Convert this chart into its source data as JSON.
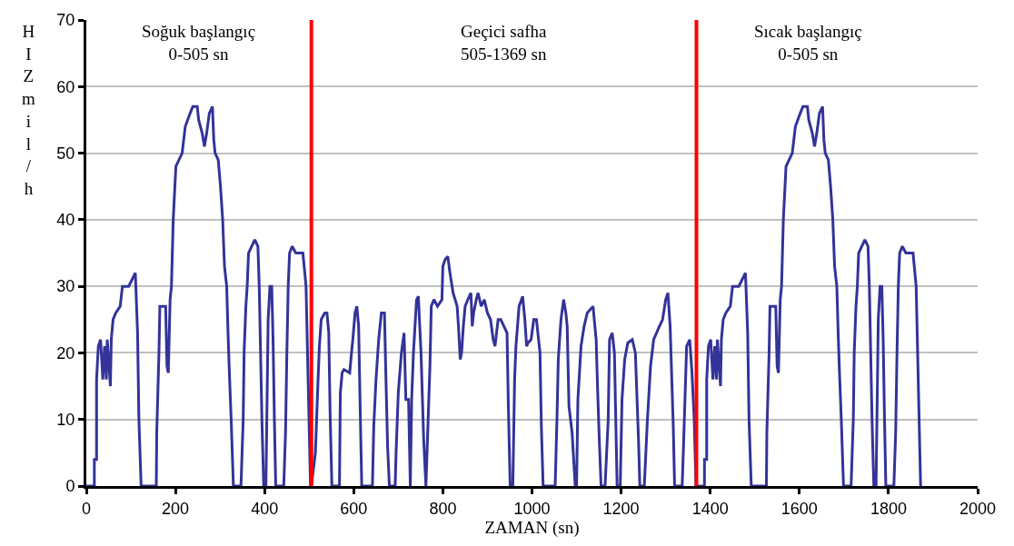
{
  "chart_data": {
    "type": "line",
    "xlabel": "ZAMAN (sn)",
    "ylabel": "HIZ mil/h",
    "xlim": [
      0,
      2000
    ],
    "xticks": [
      0,
      200,
      400,
      600,
      800,
      1000,
      1200,
      1400,
      1600,
      1800,
      2000
    ],
    "ylim": [
      0,
      70
    ],
    "yticks": [
      0,
      10,
      20,
      30,
      40,
      50,
      60,
      70
    ],
    "grid": "y",
    "marker": "none",
    "line_style": "solid",
    "ref_lines": [
      {
        "axis": "x",
        "value": 505,
        "color": "#ff0000"
      },
      {
        "axis": "x",
        "value": 1369,
        "color": "#ff0000"
      }
    ],
    "annotations": [
      "Soğuk başlangıç\n0-505 sn",
      "Geçici safha\n505-1369 sn",
      "Sıcak başlangıç\n0-505 sn"
    ],
    "series": [
      {
        "color": "#333399",
        "x": [
          0,
          18,
          18,
          23,
          23,
          27,
          32,
          37,
          41,
          45,
          47,
          54,
          56,
          60,
          66,
          76,
          81,
          95,
          110,
          115,
          118,
          123,
          157,
          158,
          163,
          165,
          178,
          181,
          184,
          188,
          191,
          195,
          201,
          215,
          222,
          233,
          239,
          249,
          252,
          260,
          265,
          270,
          276,
          283,
          286,
          289,
          296,
          301,
          306,
          310,
          315,
          318,
          321,
          325,
          330,
          347,
          352,
          354,
          358,
          361,
          364,
          371,
          378,
          385,
          388,
          391,
          394,
          398,
          403,
          405,
          408,
          412,
          416,
          419,
          422,
          425,
          443,
          447,
          450,
          453,
          456,
          462,
          470,
          486,
          493,
          496,
          499,
          503,
          505,
          514,
          520,
          523,
          527,
          535,
          540,
          544,
          547,
          551,
          568,
          570,
          574,
          578,
          591,
          595,
          598,
          603,
          607,
          611,
          615,
          618,
          642,
          645,
          650,
          656,
          662,
          669,
          672,
          676,
          680,
          693,
          695,
          700,
          707,
          713,
          717,
          723,
          727,
          730,
          734,
          741,
          745,
          751,
          757,
          762,
          766,
          771,
          774,
          780,
          788,
          798,
          800,
          805,
          811,
          816,
          823,
          832,
          835,
          839,
          842,
          846,
          850,
          856,
          863,
          866,
          869,
          875,
          879,
          886,
          893,
          900,
          907,
          913,
          917,
          924,
          930,
          937,
          944,
          947,
          951,
          957,
          961,
          964,
          971,
          979,
          984,
          988,
          991,
          998,
          1004,
          1010,
          1018,
          1021,
          1025,
          1052,
          1056,
          1059,
          1065,
          1071,
          1076,
          1079,
          1083,
          1090,
          1097,
          1100,
          1103,
          1110,
          1117,
          1124,
          1137,
          1144,
          1147,
          1151,
          1155,
          1164,
          1171,
          1174,
          1180,
          1185,
          1188,
          1191,
          1198,
          1202,
          1208,
          1215,
          1225,
          1232,
          1239,
          1242,
          1252,
          1259,
          1266,
          1273,
          1286,
          1293,
          1300,
          1305,
          1310,
          1317,
          1320,
          1337,
          1340,
          1347,
          1354,
          1359,
          1364,
          1368,
          1369,
          1387,
          1387,
          1392,
          1392,
          1396,
          1401,
          1406,
          1410,
          1414,
          1416,
          1423,
          1425,
          1429,
          1435,
          1445,
          1450,
          1464,
          1479,
          1484,
          1487,
          1492,
          1526,
          1527,
          1532,
          1534,
          1547,
          1550,
          1553,
          1557,
          1560,
          1564,
          1570,
          1584,
          1591,
          1602,
          1608,
          1618,
          1621,
          1629,
          1634,
          1639,
          1645,
          1652,
          1655,
          1658,
          1665,
          1670,
          1675,
          1679,
          1684,
          1687,
          1690,
          1694,
          1699,
          1716,
          1721,
          1723,
          1727,
          1730,
          1733,
          1740,
          1747,
          1754,
          1757,
          1760,
          1763,
          1767,
          1772,
          1774,
          1777,
          1781,
          1785,
          1788,
          1791,
          1794,
          1812,
          1816,
          1819,
          1822,
          1825,
          1831,
          1839,
          1855,
          1862,
          1865,
          1868,
          1872
        ],
        "values": [
          0,
          0,
          4,
          4,
          16,
          21,
          22,
          16,
          21,
          16,
          22,
          15,
          22,
          25,
          26,
          27,
          30,
          30,
          32,
          23,
          10,
          0,
          0,
          8,
          20,
          27,
          27,
          18,
          17,
          28,
          30,
          40,
          48,
          50,
          54,
          56,
          57,
          57,
          55,
          53,
          51,
          53,
          56,
          57,
          52,
          50,
          49,
          45,
          40,
          33,
          30,
          23,
          17,
          10,
          0,
          0,
          10,
          20,
          27,
          30,
          35,
          36,
          37,
          36,
          30,
          20,
          10,
          0,
          0,
          10,
          25,
          30,
          30,
          22,
          10,
          0,
          0,
          8,
          20,
          30,
          35,
          36,
          35,
          35,
          30,
          21,
          12,
          0,
          0,
          5,
          16,
          21,
          25,
          26,
          26,
          23,
          11,
          0,
          0,
          14,
          17,
          17.5,
          17,
          20,
          22,
          26,
          27,
          24,
          10,
          0,
          0,
          9,
          16,
          22,
          26,
          26,
          17,
          6,
          0,
          0,
          5,
          14,
          20,
          23,
          13,
          13,
          0,
          13,
          20,
          28,
          28.5,
          20,
          7,
          0,
          8,
          18,
          27,
          28,
          27,
          28,
          33,
          34,
          34.5,
          32,
          29,
          27,
          24,
          19,
          20,
          24,
          27,
          28,
          29,
          24,
          26,
          28,
          29,
          27,
          28,
          26,
          25,
          22,
          21,
          25,
          25,
          24,
          23,
          12,
          0,
          0,
          16,
          21,
          27,
          28.5,
          25,
          21,
          21.5,
          22,
          25,
          25,
          20,
          9,
          0,
          0,
          10,
          19,
          25,
          28,
          26,
          24,
          12,
          8,
          0,
          0,
          13,
          21,
          24,
          26,
          27,
          22,
          15,
          7,
          0,
          0,
          10,
          22,
          23,
          20,
          10,
          0,
          0,
          13,
          19,
          21.5,
          22,
          20,
          7,
          0,
          0,
          10,
          18,
          22,
          24,
          25,
          28,
          29,
          24,
          9,
          0,
          0,
          6,
          21,
          22,
          17,
          10,
          0,
          0,
          0,
          4,
          4,
          16,
          21,
          22,
          16,
          21,
          16,
          22,
          15,
          22,
          25,
          26,
          27,
          30,
          30,
          32,
          23,
          10,
          0,
          0,
          8,
          20,
          27,
          27,
          18,
          17,
          28,
          30,
          40,
          48,
          50,
          54,
          56,
          57,
          57,
          55,
          53,
          51,
          53,
          56,
          57,
          52,
          50,
          49,
          45,
          40,
          33,
          30,
          23,
          17,
          10,
          0,
          0,
          10,
          20,
          27,
          30,
          35,
          36,
          37,
          36,
          30,
          20,
          10,
          0,
          0,
          10,
          25,
          30,
          30,
          22,
          10,
          0,
          0,
          8,
          20,
          30,
          35,
          36,
          35,
          35,
          30,
          21,
          12,
          0
        ]
      }
    ]
  }
}
